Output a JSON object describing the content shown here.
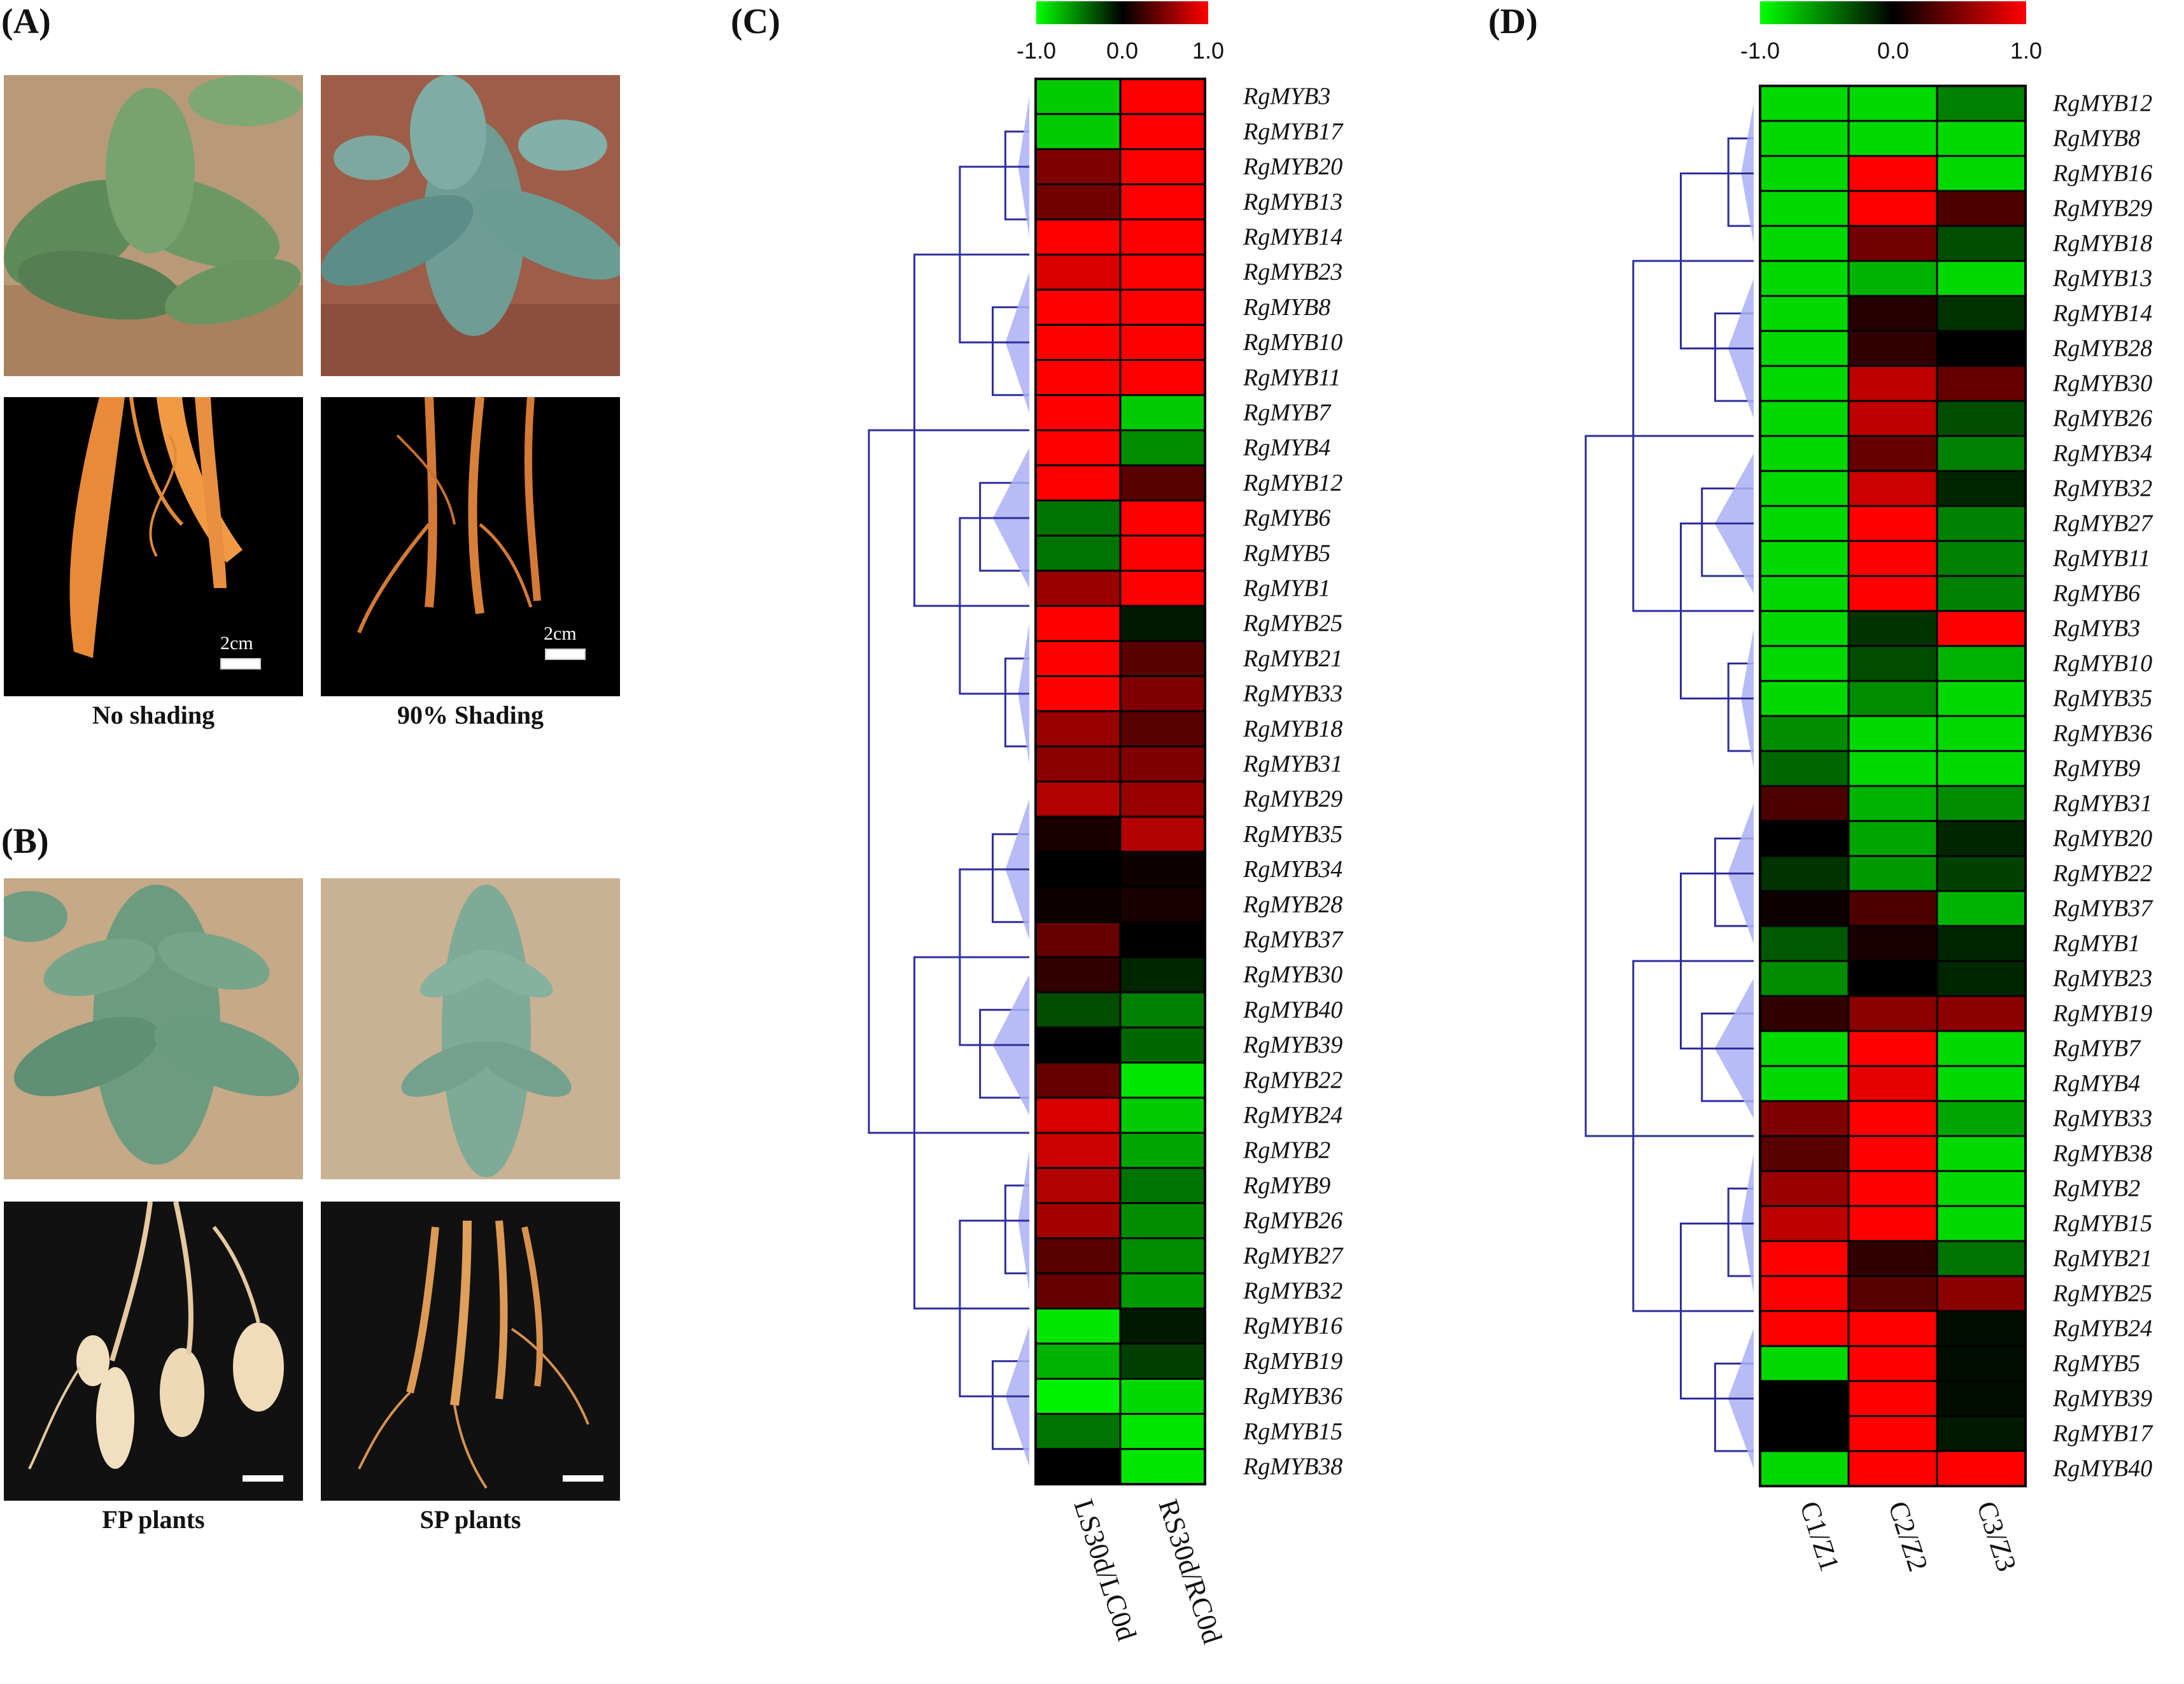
{
  "panels": {
    "a": {
      "label": "(A)",
      "caption_left": "No shading",
      "caption_right": "90% Shading",
      "scale_left": "2cm",
      "scale_right": "2cm"
    },
    "b": {
      "label": "(B)",
      "caption_left": "FP plants",
      "caption_right": "SP plants"
    },
    "c": {
      "label": "(C)"
    },
    "d": {
      "label": "(D)"
    }
  },
  "colors": {
    "low": "#00ff00",
    "mid": "#000000",
    "high": "#ff0000",
    "dendrogram": "#2e2e9e",
    "cluster_fill": "#aab0f5"
  },
  "chart_data": [
    {
      "type": "heatmap",
      "scale": {
        "min": -1.0,
        "mid": 0.0,
        "max": 1.0,
        "tick_labels": [
          "-1.0",
          "0.0",
          "1.0"
        ]
      },
      "columns": [
        "LS30d/LC0d",
        "RS30d/RC0d"
      ],
      "rows": [
        "RgMYB3",
        "RgMYB17",
        "RgMYB20",
        "RgMYB13",
        "RgMYB14",
        "RgMYB23",
        "RgMYB8",
        "RgMYB10",
        "RgMYB11",
        "RgMYB7",
        "RgMYB4",
        "RgMYB12",
        "RgMYB6",
        "RgMYB5",
        "RgMYB1",
        "RgMYB25",
        "RgMYB21",
        "RgMYB33",
        "RgMYB18",
        "RgMYB31",
        "RgMYB29",
        "RgMYB35",
        "RgMYB34",
        "RgMYB28",
        "RgMYB37",
        "RgMYB30",
        "RgMYB40",
        "RgMYB39",
        "RgMYB22",
        "RgMYB24",
        "RgMYB2",
        "RgMYB9",
        "RgMYB26",
        "RgMYB27",
        "RgMYB32",
        "RgMYB16",
        "RgMYB19",
        "RgMYB36",
        "RgMYB15",
        "RgMYB38"
      ],
      "values": [
        [
          -0.8,
          1.0
        ],
        [
          -0.8,
          1.0
        ],
        [
          0.5,
          1.0
        ],
        [
          0.45,
          1.0
        ],
        [
          1.0,
          1.0
        ],
        [
          0.85,
          1.0
        ],
        [
          1.0,
          1.0
        ],
        [
          1.0,
          1.0
        ],
        [
          1.0,
          1.0
        ],
        [
          1.0,
          -0.8
        ],
        [
          1.0,
          -0.55
        ],
        [
          1.0,
          0.35
        ],
        [
          -0.45,
          1.0
        ],
        [
          -0.45,
          1.0
        ],
        [
          0.6,
          1.0
        ],
        [
          1.0,
          -0.1
        ],
        [
          1.0,
          0.35
        ],
        [
          1.0,
          0.5
        ],
        [
          0.6,
          0.35
        ],
        [
          0.55,
          0.5
        ],
        [
          0.7,
          0.6
        ],
        [
          0.1,
          0.7
        ],
        [
          0.0,
          0.05
        ],
        [
          0.05,
          0.1
        ],
        [
          0.4,
          0.0
        ],
        [
          0.2,
          -0.15
        ],
        [
          -0.3,
          -0.5
        ],
        [
          0.0,
          -0.4
        ],
        [
          0.4,
          -0.9
        ],
        [
          0.85,
          -0.8
        ],
        [
          0.8,
          -0.65
        ],
        [
          0.7,
          -0.45
        ],
        [
          0.65,
          -0.55
        ],
        [
          0.35,
          -0.55
        ],
        [
          0.4,
          -0.6
        ],
        [
          -0.9,
          -0.1
        ],
        [
          -0.7,
          -0.25
        ],
        [
          -0.95,
          -0.85
        ],
        [
          -0.45,
          -0.9
        ],
        [
          0.0,
          -0.9
        ]
      ]
    },
    {
      "type": "heatmap",
      "scale": {
        "min": -1.0,
        "mid": 0.0,
        "max": 1.0,
        "tick_labels": [
          "-1.0",
          "0.0",
          "1.0"
        ]
      },
      "columns": [
        "C1/Z1",
        "C2/Z2",
        "C3/Z3"
      ],
      "rows": [
        "RgMYB12",
        "RgMYB8",
        "RgMYB16",
        "RgMYB29",
        "RgMYB18",
        "RgMYB13",
        "RgMYB14",
        "RgMYB28",
        "RgMYB30",
        "RgMYB26",
        "RgMYB34",
        "RgMYB32",
        "RgMYB27",
        "RgMYB11",
        "RgMYB6",
        "RgMYB3",
        "RgMYB10",
        "RgMYB35",
        "RgMYB36",
        "RgMYB9",
        "RgMYB31",
        "RgMYB20",
        "RgMYB22",
        "RgMYB37",
        "RgMYB1",
        "RgMYB23",
        "RgMYB19",
        "RgMYB7",
        "RgMYB4",
        "RgMYB33",
        "RgMYB38",
        "RgMYB2",
        "RgMYB15",
        "RgMYB21",
        "RgMYB25",
        "RgMYB24",
        "RgMYB5",
        "RgMYB39",
        "RgMYB17",
        "RgMYB40"
      ],
      "values": [
        [
          -0.85,
          -0.85,
          -0.5
        ],
        [
          -0.85,
          -0.85,
          -0.85
        ],
        [
          -0.85,
          1.0,
          -0.85
        ],
        [
          -0.85,
          1.0,
          0.3
        ],
        [
          -0.85,
          0.45,
          -0.3
        ],
        [
          -0.85,
          -0.7,
          -0.85
        ],
        [
          -0.85,
          0.15,
          -0.2
        ],
        [
          -0.85,
          0.2,
          0.0
        ],
        [
          -0.85,
          0.75,
          0.4
        ],
        [
          -0.85,
          0.75,
          -0.3
        ],
        [
          -0.85,
          0.4,
          -0.5
        ],
        [
          -0.85,
          0.8,
          -0.15
        ],
        [
          -0.85,
          1.0,
          -0.5
        ],
        [
          -0.85,
          1.0,
          -0.5
        ],
        [
          -0.85,
          1.0,
          -0.5
        ],
        [
          -0.85,
          -0.2,
          1.0
        ],
        [
          -0.85,
          -0.3,
          -0.7
        ],
        [
          -0.85,
          -0.55,
          -0.85
        ],
        [
          -0.55,
          -0.85,
          -0.85
        ],
        [
          -0.4,
          -0.85,
          -0.85
        ],
        [
          0.3,
          -0.7,
          -0.55
        ],
        [
          0.0,
          -0.65,
          -0.15
        ],
        [
          -0.2,
          -0.6,
          -0.25
        ],
        [
          0.05,
          0.3,
          -0.7
        ],
        [
          -0.35,
          0.1,
          -0.15
        ],
        [
          -0.55,
          0.0,
          -0.15
        ],
        [
          0.2,
          0.55,
          0.55
        ],
        [
          -0.85,
          1.0,
          -0.85
        ],
        [
          -0.85,
          0.9,
          -0.85
        ],
        [
          0.5,
          1.0,
          -0.65
        ],
        [
          0.35,
          1.0,
          -0.85
        ],
        [
          0.6,
          1.0,
          -0.85
        ],
        [
          0.75,
          1.0,
          -0.85
        ],
        [
          1.0,
          0.2,
          -0.45
        ],
        [
          1.0,
          0.35,
          0.55
        ],
        [
          1.0,
          1.0,
          -0.05
        ],
        [
          -0.85,
          1.0,
          -0.05
        ],
        [
          0.0,
          1.0,
          -0.05
        ],
        [
          0.0,
          1.0,
          -0.1
        ],
        [
          -0.85,
          1.0,
          1.0
        ]
      ]
    }
  ]
}
